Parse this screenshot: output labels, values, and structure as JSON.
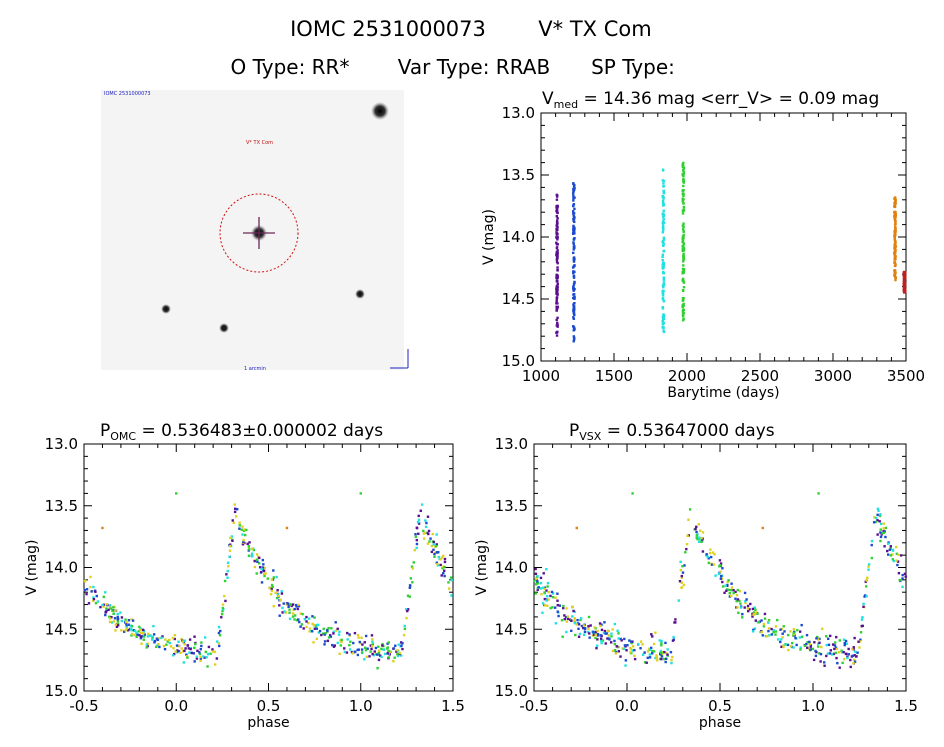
{
  "header": {
    "title_id": "IOMC 2531000073",
    "title_name": "V* TX Com",
    "subtitle_otype": "O Type: RR*",
    "subtitle_vartype": "Var Type: RRAB",
    "subtitle_sptype": "SP Type:"
  },
  "image_panel": {
    "corner_label": "IOMC 2531000073",
    "target_label": "V* TX Com",
    "bottom_label": "1 arcmin",
    "colors": {
      "background": "#f4f4f4",
      "circle": "#d01010",
      "cross": "#6a2a5a"
    },
    "stars": [
      {
        "name": "target",
        "brightness": "bright"
      },
      {
        "name": "top-right",
        "brightness": "bright"
      },
      {
        "name": "lower-left",
        "brightness": "medium"
      },
      {
        "name": "bottom-center",
        "brightness": "medium"
      },
      {
        "name": "right",
        "brightness": "medium"
      }
    ]
  },
  "chart_data": [
    {
      "id": "lightcurve",
      "type": "scatter",
      "title_main": "V",
      "title_sub": "med",
      "title_rest": " = 14.36 mag <err_V> = 0.09 mag",
      "xlabel": "Barytime (days)",
      "ylabel": "V (mag)",
      "xlim": [
        1000,
        3500
      ],
      "ylim": [
        15.0,
        13.0
      ],
      "xticks": [
        "1000",
        "1500",
        "2000",
        "2500",
        "3000",
        "3500"
      ],
      "yticks": [
        "13.0",
        "13.5",
        "14.0",
        "14.5",
        "15.0"
      ],
      "clusters": [
        {
          "x": 1110,
          "ymin": 13.65,
          "ymax": 14.8,
          "color": "#5a0f90"
        },
        {
          "x": 1225,
          "ymin": 13.55,
          "ymax": 14.85,
          "color": "#1a4ad0"
        },
        {
          "x": 1838,
          "ymin": 13.45,
          "ymax": 14.78,
          "color": "#20e0e0"
        },
        {
          "x": 1975,
          "ymin": 13.4,
          "ymax": 14.7,
          "color": "#30d030"
        },
        {
          "x": 3425,
          "ymin": 13.68,
          "ymax": 14.35,
          "color": "#e08010"
        },
        {
          "x": 3490,
          "ymin": 14.28,
          "ymax": 14.45,
          "color": "#c02020"
        }
      ]
    },
    {
      "id": "phased-omc",
      "type": "scatter",
      "title_main": "P",
      "title_sub": "OMC",
      "title_rest": " = 0.536483±0.000002 days",
      "xlabel": "phase",
      "ylabel": "V (mag)",
      "xlim": [
        -0.5,
        1.5
      ],
      "ylim": [
        15.0,
        13.0
      ],
      "xticks": [
        "-0.5",
        "0.0",
        "0.5",
        "1.0",
        "1.5"
      ],
      "yticks": [
        "13.0",
        "13.5",
        "14.0",
        "14.5",
        "15.0"
      ],
      "template": {
        "max_phase": 0.32,
        "max_mag": 13.55,
        "min_phase_end": 1.22,
        "min_mag": 14.7,
        "scatter": 0.09
      },
      "outliers": [
        {
          "x": -0.4,
          "y": 13.68,
          "color": "#e08010"
        },
        {
          "x": 0.0,
          "y": 13.4,
          "color": "#30d030"
        },
        {
          "x": 0.6,
          "y": 13.68,
          "color": "#e08010"
        },
        {
          "x": 1.0,
          "y": 13.4,
          "color": "#30d030"
        }
      ]
    },
    {
      "id": "phased-vsx",
      "type": "scatter",
      "title_main": "P",
      "title_sub": "VSX",
      "title_rest": " = 0.53647000 days",
      "xlabel": "phase",
      "ylabel": "V (mag)",
      "xlim": [
        -0.5,
        1.5
      ],
      "ylim": [
        15.0,
        13.0
      ],
      "xticks": [
        "-0.5",
        "0.0",
        "0.5",
        "1.0",
        "1.5"
      ],
      "yticks": [
        "13.0",
        "13.5",
        "14.0",
        "14.5",
        "15.0"
      ],
      "template": {
        "max_phase": 0.34,
        "max_mag": 13.55,
        "min_phase_end": 1.22,
        "min_mag": 14.7,
        "scatter": 0.1
      },
      "outliers": [
        {
          "x": -0.27,
          "y": 13.68,
          "color": "#e08010"
        },
        {
          "x": 0.03,
          "y": 13.4,
          "color": "#30d030"
        },
        {
          "x": 0.73,
          "y": 13.68,
          "color": "#e08010"
        },
        {
          "x": 1.03,
          "y": 13.4,
          "color": "#30d030"
        }
      ]
    }
  ],
  "series_colors": [
    "#5a0f90",
    "#1a4ad0",
    "#20e0e0",
    "#30d030",
    "#e0d020",
    "#e08010"
  ]
}
